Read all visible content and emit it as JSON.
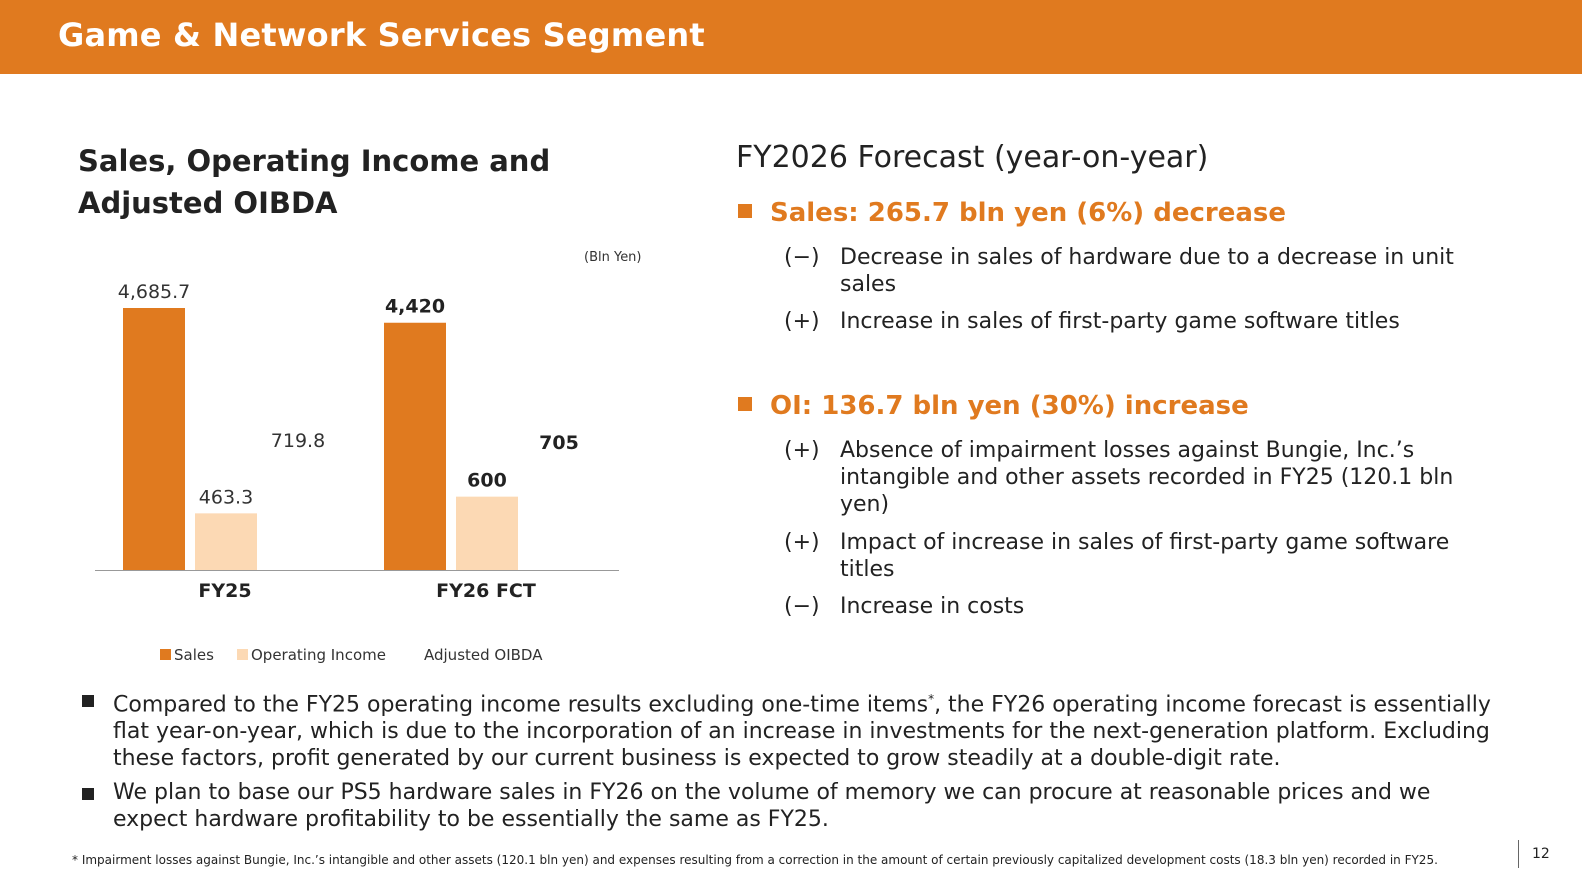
{
  "header": {
    "title": "Game & Network Services Segment"
  },
  "left": {
    "title_line1": "Sales, Operating Income and",
    "title_line2": "Adjusted OIBDA",
    "unit": "(Bln Yen)",
    "legend": {
      "sales": "Sales",
      "oi": "Operating Income",
      "oibda": "Adjusted OIBDA"
    }
  },
  "chart_data": {
    "type": "bar",
    "categories": [
      "FY25",
      "FY26 FCT"
    ],
    "series": [
      {
        "name": "Sales",
        "values": [
          4685.7,
          4420
        ],
        "labels": [
          "4,685.7",
          "4,420"
        ],
        "color": "#e07a1f"
      },
      {
        "name": "Operating Income",
        "values": [
          463.3,
          600
        ],
        "labels": [
          "463.3",
          "600"
        ],
        "color": "#fcd9b4"
      },
      {
        "name": "Adjusted OIBDA",
        "values": [
          719.8,
          705
        ],
        "labels": [
          "719.8",
          "705"
        ],
        "color": "#ffffff"
      }
    ],
    "value_scale": "broken axis (Sales bars shortened)",
    "legend_position": "bottom",
    "grid": false
  },
  "right": {
    "title": "FY2026 Forecast (year-on-year)",
    "sales_head": "Sales: 265.7 bln yen (6%) decrease",
    "sales_items": [
      {
        "sign": "(−)",
        "text": "Decrease in sales of hardware due to a decrease in unit sales"
      },
      {
        "sign": "(+)",
        "text": "Increase in sales of first-party game software titles"
      }
    ],
    "oi_head": "OI: 136.7 bln yen (30%) increase",
    "oi_items": [
      {
        "sign": "(+)",
        "text": "Absence of impairment losses against Bungie, Inc.’s intangible and other assets recorded in FY25 (120.1 bln yen)"
      },
      {
        "sign": "(+)",
        "text": "Impact of increase in sales of first-party game software titles"
      },
      {
        "sign": "(−)",
        "text": "Increase in costs"
      }
    ]
  },
  "bullets": [
    {
      "before": "Compared to the FY25 operating income results excluding one-time items",
      "sup": "*",
      "after": ", the FY26 operating income forecast is essentially flat year-on-year, which is due to the incorporation of an increase in investments for the next-generation platform. Excluding these factors, profit generated by our current business is expected to grow steadily at a double-digit rate."
    },
    {
      "before": "We plan to base our PS5 hardware sales in FY26 on the volume of memory we can procure at reasonable prices and we expect hardware profitability to be essentially the same as FY25.",
      "sup": "",
      "after": ""
    }
  ],
  "footnote": "* Impairment losses against Bungie, Inc.’s intangible and other assets (120.1 bln yen) and expenses resulting from a correction in the amount of certain previously capitalized development costs (18.3 bln yen) recorded in FY25.",
  "page_number": "12"
}
